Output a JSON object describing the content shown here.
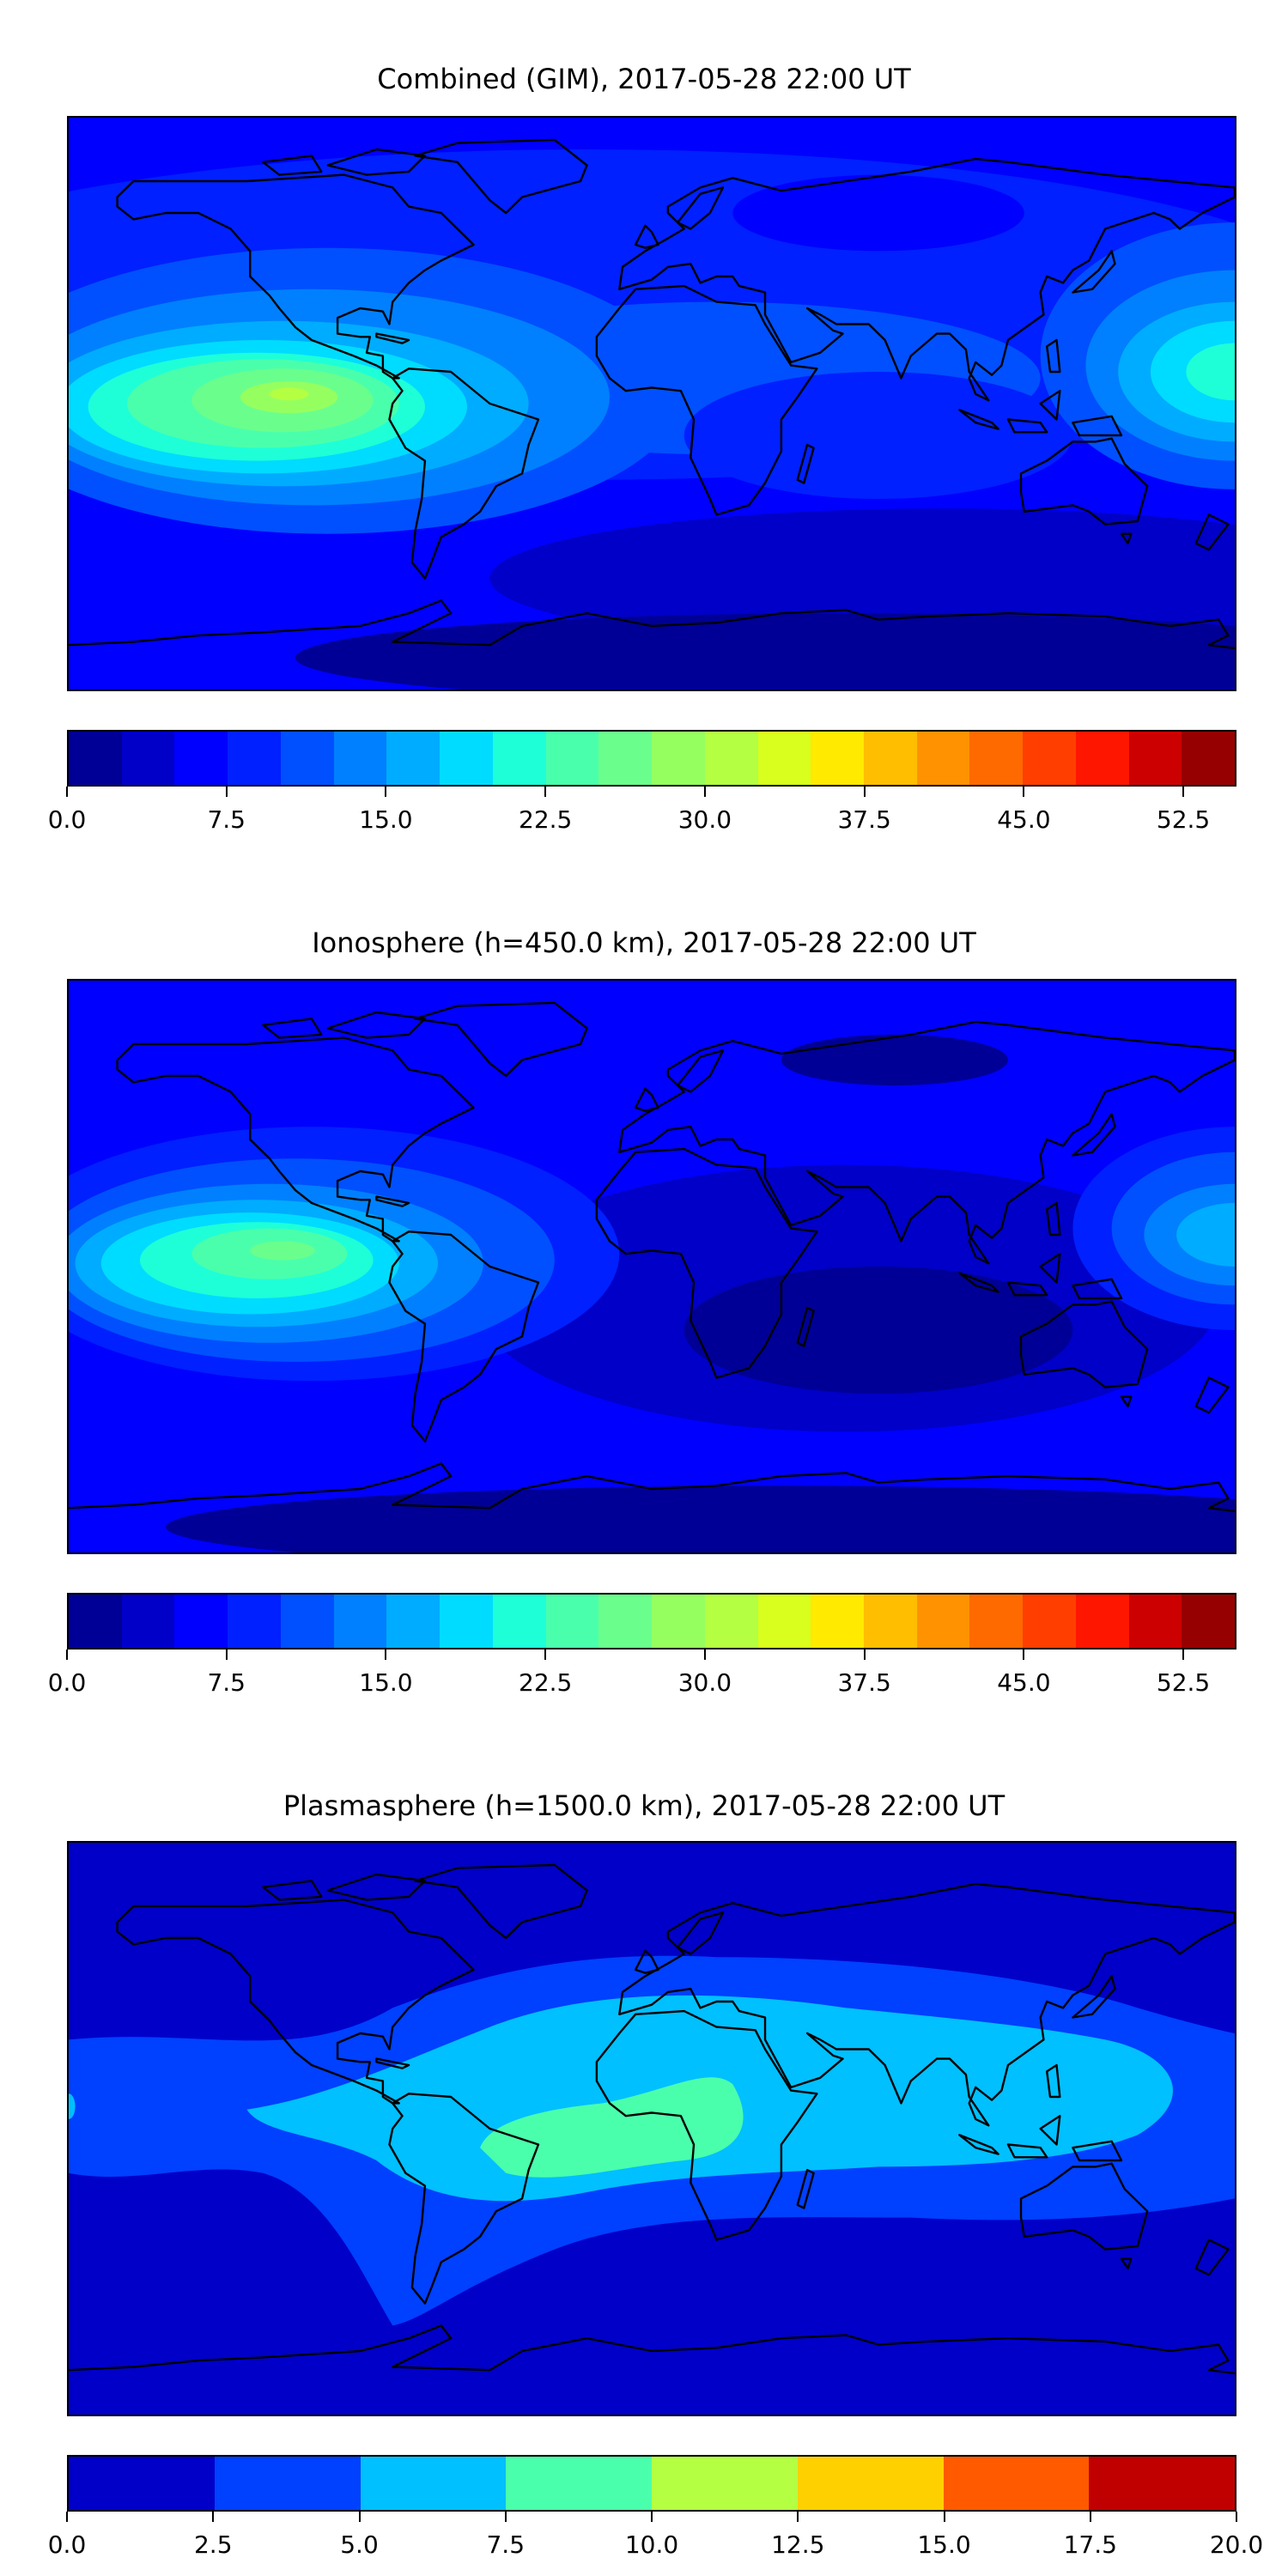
{
  "chart_data": [
    {
      "type": "heatmap",
      "title": "Combined (GIM), 2017-05-28 22:00 UT",
      "projection": "equirectangular world map with coastlines",
      "colorbar": {
        "range": [
          0,
          55
        ],
        "step": 2.5,
        "ticks": [
          0,
          7.5,
          15,
          22.5,
          30,
          37.5,
          45,
          52.5
        ],
        "tick_labels": [
          "0.0",
          "7.5",
          "15.0",
          "22.5",
          "30.0",
          "37.5",
          "45.0",
          "52.5"
        ],
        "colors": [
          "#000096",
          "#0000c8",
          "#0000ff",
          "#0020ff",
          "#0050ff",
          "#0080ff",
          "#00acff",
          "#00dcff",
          "#1effd8",
          "#4affac",
          "#6aff8c",
          "#96ff60",
          "#b4ff42",
          "#d8ff1e",
          "#ffea00",
          "#ffbe00",
          "#ff9200",
          "#ff6a00",
          "#ff3e00",
          "#ff1600",
          "#cc0000",
          "#960000"
        ]
      },
      "features": {
        "max_region": "eastern Pacific near equator (~32.5-35)",
        "secondary_max": "western Pacific (~20-22.5)",
        "min_region": "southern high latitudes (0-2.5)"
      }
    },
    {
      "type": "heatmap",
      "title": "Ionosphere  (h=450.0 km), 2017-05-28 22:00 UT",
      "projection": "equirectangular world map with coastlines",
      "colorbar": {
        "range": [
          0,
          55
        ],
        "step": 2.5,
        "ticks": [
          0,
          7.5,
          15,
          22.5,
          30,
          37.5,
          45,
          52.5
        ],
        "tick_labels": [
          "0.0",
          "7.5",
          "15.0",
          "22.5",
          "30.0",
          "37.5",
          "45.0",
          "52.5"
        ],
        "colors": [
          "#000096",
          "#0000c8",
          "#0000ff",
          "#0020ff",
          "#0050ff",
          "#0080ff",
          "#00acff",
          "#00dcff",
          "#1effd8",
          "#4affac",
          "#6aff8c",
          "#96ff60",
          "#b4ff42",
          "#d8ff1e",
          "#ffea00",
          "#ffbe00",
          "#ff9200",
          "#ff6a00",
          "#ff3e00",
          "#ff1600",
          "#cc0000",
          "#960000"
        ]
      },
      "features": {
        "max_region": "eastern Pacific near equator (~27.5-30)",
        "secondary_max": "western Pacific (~15-17.5)",
        "min_region": "Atlantic/Indian Ocean & south (0-5)"
      }
    },
    {
      "type": "heatmap",
      "title": "Plasmasphere (h=1500.0 km), 2017-05-28 22:00 UT",
      "projection": "equirectangular world map with coastlines",
      "colorbar": {
        "range": [
          0,
          20
        ],
        "step": 2.5,
        "ticks": [
          0,
          2.5,
          5,
          7.5,
          10,
          12.5,
          15,
          17.5,
          20
        ],
        "tick_labels": [
          "0.0",
          "2.5",
          "5.0",
          "7.5",
          "10.0",
          "12.5",
          "15.0",
          "17.5",
          "20.0"
        ],
        "colors": [
          "#0000c8",
          "#0040ff",
          "#00c0ff",
          "#4affac",
          "#b4ff42",
          "#ffd000",
          "#ff5a00",
          "#c00000"
        ]
      },
      "features": {
        "max_region": "South Atlantic (7.5-10)",
        "band": "tropical band 5-7.5",
        "min_region": "high latitudes (0-2.5)"
      }
    }
  ]
}
